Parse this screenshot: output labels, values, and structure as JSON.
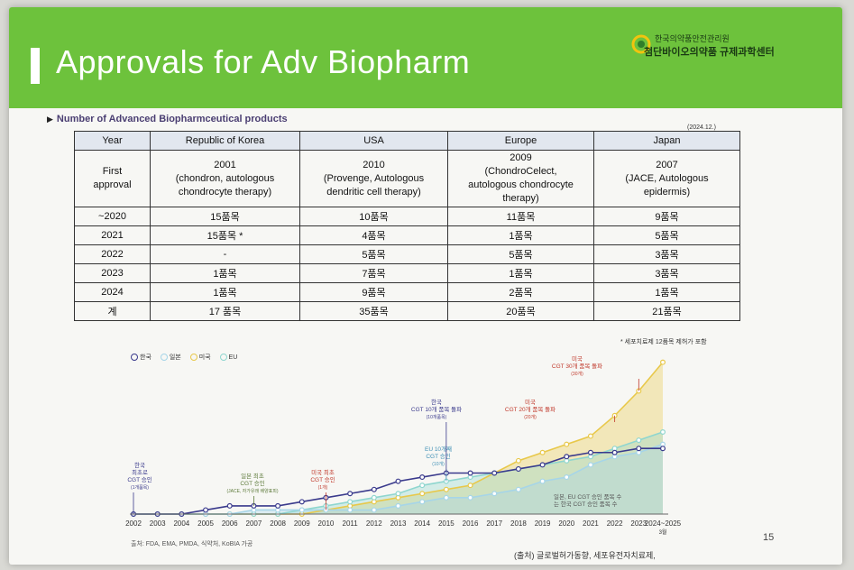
{
  "slide": {
    "title": "Approvals for Adv Biopharm",
    "logo_line1": "한국의약품안전관리원",
    "logo_line2": "첨단바이오의약품 규제과학센터",
    "subheading": "Number of Advanced Biopharmceutical products",
    "as_of": "(2024.12.)",
    "page_number": "15",
    "footnote": "* 세포치료제 12품목 제허가 포함",
    "source_left": "출처: FDA, EMA, PMDA, 식약처, KoBIA 가공",
    "source_right": "(출처) 글로벌허가동향, 세포유전자치료제,"
  },
  "table": {
    "headers": [
      "Year",
      "Republic of Korea",
      "USA",
      "Europe",
      "Japan"
    ],
    "first_approval": {
      "label_line1": "First",
      "label_line2": "approval",
      "korea": [
        "2001",
        "(chondron, autologous",
        "chondrocyte therapy)"
      ],
      "usa": [
        "2010",
        "(Provenge, Autologous",
        "dendritic cell therapy)"
      ],
      "europe": [
        "2009",
        "(ChondroCelect,",
        "autologous chondrocyte",
        "therapy)"
      ],
      "japan": [
        "2007",
        "(JACE, Autologous",
        "epidermis)"
      ]
    },
    "rows": [
      {
        "year": "~2020",
        "korea": "15품목",
        "usa": "10품목",
        "europe": "11품목",
        "japan": "9품목"
      },
      {
        "year": "2021",
        "korea": "15품목 *",
        "usa": "4품목",
        "europe": "1품목",
        "japan": "5품목"
      },
      {
        "year": "2022",
        "korea": "-",
        "usa": "5품목",
        "europe": "5품목",
        "japan": "3품목"
      },
      {
        "year": "2023",
        "korea": "1품목",
        "usa": "7품목",
        "europe": "1품목",
        "japan": "3품목"
      },
      {
        "year": "2024",
        "korea": "1품목",
        "usa": "9품목",
        "europe": "2품목",
        "japan": "1품목"
      },
      {
        "year": "계",
        "korea": "17 품목",
        "usa": "35품목",
        "europe": "20품목",
        "japan": "21품목"
      }
    ]
  },
  "legend": [
    {
      "label": "한국",
      "color": "#3a3a8c"
    },
    {
      "label": "일본",
      "color": "#a6d5e8"
    },
    {
      "label": "미국",
      "color": "#e8c84a"
    },
    {
      "label": "EU",
      "color": "#8fd6cf"
    }
  ],
  "annotations": {
    "korea_first": [
      "한국",
      "최초로",
      "CGT 승인",
      "(1개품목)"
    ],
    "japan_first": [
      "일본 최초",
      "CGT 승인",
      "(JACE, 자가유래 배양표피)"
    ],
    "usa_first": [
      "미국 최초",
      "CGT 승인",
      "(1개)"
    ],
    "eu_10": [
      "EU 10개째",
      "CGT 승인",
      "(10개)"
    ],
    "korea_10": [
      "한국",
      "CGT 10개 품목 돌파",
      "(10개품목)"
    ],
    "usa_20": [
      "미국",
      "CGT 20개 품목 돌파",
      "(20개)"
    ],
    "usa_30": [
      "미국",
      "CGT 30개 품목 돌파",
      "(30개)"
    ],
    "note": [
      "일본, EU CGT 승인 품목 수",
      "는 한국 CGT 승인 품목 수"
    ]
  },
  "chart_data": {
    "type": "area",
    "x": [
      "2002",
      "2003",
      "2004",
      "2005",
      "2006",
      "2007",
      "2008",
      "2009",
      "2010",
      "2011",
      "2012",
      "2013",
      "2014",
      "2015",
      "2016",
      "2017",
      "2018",
      "2019",
      "2020",
      "2021",
      "2022",
      "2023",
      "2024~2025"
    ],
    "x_label_last_sub": "3월",
    "ylim": [
      0,
      40
    ],
    "series": [
      {
        "name": "한국",
        "color": "#3a3a8c",
        "values": [
          0,
          0,
          0,
          1,
          2,
          2,
          2,
          3,
          4,
          5,
          6,
          8,
          9,
          10,
          10,
          10,
          11,
          12,
          14,
          15,
          15,
          16,
          16
        ]
      },
      {
        "name": "일본",
        "color": "#a6d5e8",
        "values": [
          0,
          0,
          0,
          0,
          0,
          1,
          1,
          1,
          1,
          1,
          1,
          2,
          3,
          4,
          4,
          5,
          6,
          8,
          9,
          12,
          14,
          15,
          17
        ]
      },
      {
        "name": "미국",
        "color": "#e8c84a",
        "values": [
          0,
          0,
          0,
          0,
          0,
          0,
          0,
          0,
          1,
          2,
          3,
          4,
          5,
          6,
          7,
          10,
          13,
          15,
          17,
          19,
          24,
          30,
          37
        ]
      },
      {
        "name": "EU",
        "color": "#8fd6cf",
        "values": [
          0,
          0,
          0,
          0,
          0,
          0,
          0,
          1,
          2,
          3,
          4,
          5,
          7,
          8,
          9,
          10,
          11,
          12,
          13,
          14,
          16,
          18,
          20
        ]
      }
    ],
    "grid": false,
    "legend_position": "top-left"
  }
}
